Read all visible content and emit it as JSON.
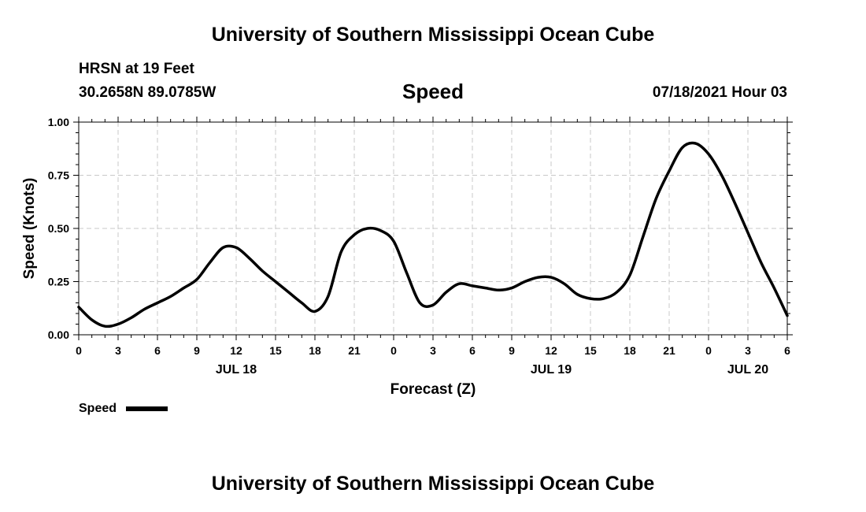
{
  "header": {
    "title_top": "University of Southern Mississippi Ocean Cube",
    "title_bottom": "University of Southern Mississippi Ocean Cube",
    "station": "HRSN at 19 Feet",
    "coords": "30.2658N  89.0785W",
    "datetime": "07/18/2021 Hour 03"
  },
  "legend": {
    "label": "Speed"
  },
  "colors": {
    "line": "#000000",
    "grid": "#c8c8c8"
  },
  "chart_data": {
    "type": "line",
    "title": "Speed",
    "xlabel": "Forecast (Z)",
    "ylabel": "Speed (Knots)",
    "ylim": [
      0,
      1
    ],
    "xlim": [
      0,
      54
    ],
    "yticks": [
      0,
      0.25,
      0.5,
      0.75,
      1.0
    ],
    "ytick_labels": [
      "0.00",
      "0.25",
      "0.50",
      "0.75",
      "1.00"
    ],
    "xticks": [
      0,
      3,
      6,
      9,
      12,
      15,
      18,
      21,
      24,
      27,
      30,
      33,
      36,
      39,
      42,
      45,
      48,
      51,
      54
    ],
    "xtick_labels": [
      "0",
      "3",
      "6",
      "9",
      "12",
      "15",
      "18",
      "21",
      "0",
      "3",
      "6",
      "9",
      "12",
      "15",
      "18",
      "21",
      "0",
      "3",
      "6"
    ],
    "day_labels": [
      {
        "x": 12,
        "label": "JUL 18"
      },
      {
        "x": 36,
        "label": "JUL 19"
      },
      {
        "x": 51,
        "label": "JUL 20"
      }
    ],
    "grid": true,
    "series": [
      {
        "name": "Speed",
        "x": [
          0,
          1,
          2,
          3,
          4,
          5,
          6,
          7,
          8,
          9,
          10,
          11,
          12,
          13,
          14,
          15,
          16,
          17,
          18,
          19,
          20,
          21,
          22,
          23,
          24,
          25,
          26,
          27,
          28,
          29,
          30,
          31,
          32,
          33,
          34,
          35,
          36,
          37,
          38,
          39,
          40,
          41,
          42,
          43,
          44,
          45,
          46,
          47,
          48,
          49,
          50,
          51,
          52,
          53,
          54
        ],
        "values": [
          0.13,
          0.07,
          0.04,
          0.05,
          0.08,
          0.12,
          0.15,
          0.18,
          0.22,
          0.26,
          0.34,
          0.41,
          0.41,
          0.36,
          0.3,
          0.25,
          0.2,
          0.15,
          0.11,
          0.18,
          0.39,
          0.47,
          0.5,
          0.49,
          0.44,
          0.29,
          0.15,
          0.14,
          0.2,
          0.24,
          0.23,
          0.22,
          0.21,
          0.22,
          0.25,
          0.27,
          0.27,
          0.24,
          0.19,
          0.17,
          0.17,
          0.2,
          0.28,
          0.46,
          0.64,
          0.77,
          0.88,
          0.9,
          0.85,
          0.75,
          0.62,
          0.48,
          0.34,
          0.22,
          0.09
        ]
      }
    ]
  }
}
